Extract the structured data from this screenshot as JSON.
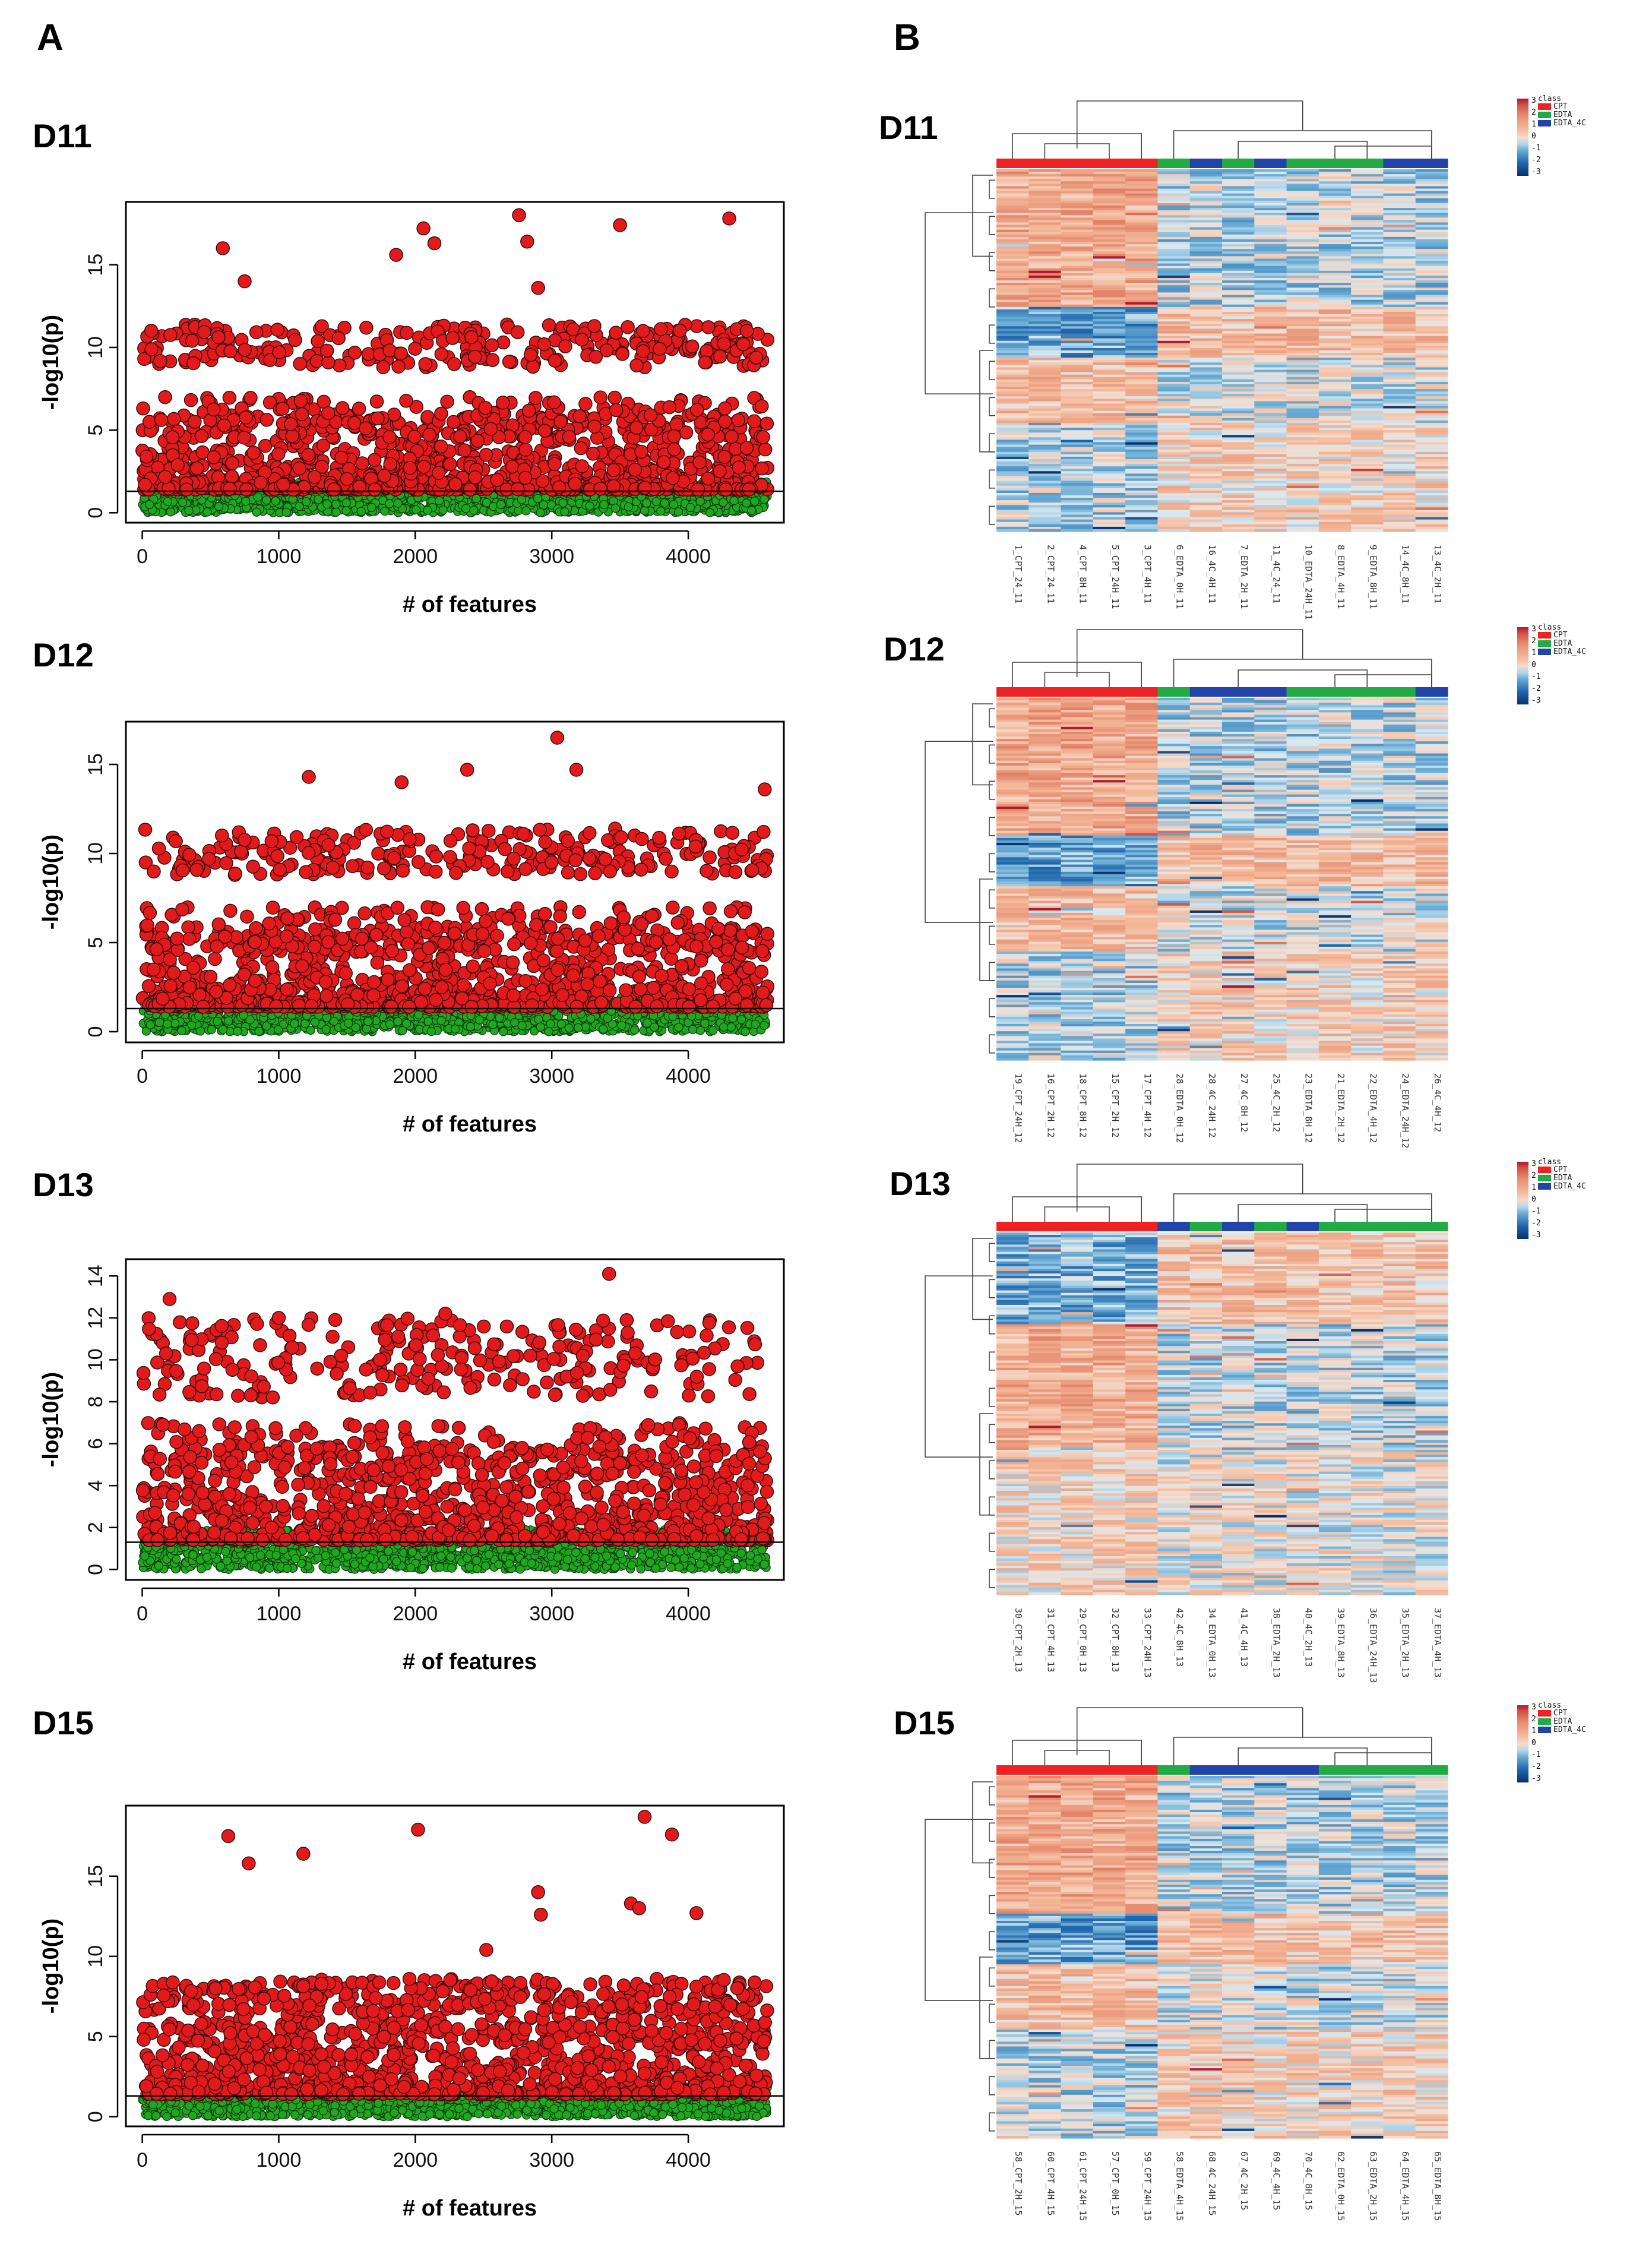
{
  "figure": {
    "panels": [
      {
        "letter": "A"
      },
      {
        "letter": "B"
      }
    ]
  },
  "colors": {
    "significant": "#e31a1c",
    "nonsignificant": "#1fa81f",
    "cpt": "#ee2222",
    "edta": "#22aa44",
    "edta_4c": "#2244aa",
    "heat_high": "#b2182b",
    "heat_mid": "#f7e4d9",
    "heat_low": "#2166ac"
  },
  "chart_data": [
    {
      "type": "scatter",
      "panel": "A",
      "label": "D11",
      "xlabel": "# of features",
      "ylabel": "-log10(p)",
      "xlim": [
        -120,
        4700
      ],
      "ylim": [
        -0.6,
        18.8
      ],
      "xticks": [
        0,
        1000,
        2000,
        3000,
        4000
      ],
      "yticks": [
        0,
        5,
        10,
        15
      ],
      "threshold": 1.3,
      "high_points": [
        [
          590,
          16.0
        ],
        [
          750,
          14.0
        ],
        [
          1860,
          15.6
        ],
        [
          2060,
          17.2
        ],
        [
          2140,
          16.3
        ],
        [
          2760,
          18.0
        ],
        [
          2820,
          16.4
        ],
        [
          2900,
          13.6
        ],
        [
          3500,
          17.4
        ],
        [
          4300,
          17.8
        ]
      ]
    },
    {
      "type": "scatter",
      "panel": "A",
      "label": "D12",
      "xlabel": "# of features",
      "ylabel": "-log10(p)",
      "xlim": [
        -120,
        4700
      ],
      "ylim": [
        -0.6,
        17.4
      ],
      "xticks": [
        0,
        1000,
        2000,
        3000,
        4000
      ],
      "yticks": [
        0,
        5,
        10,
        15
      ],
      "threshold": 1.3,
      "high_points": [
        [
          1220,
          14.3
        ],
        [
          1900,
          14.0
        ],
        [
          2380,
          14.7
        ],
        [
          3040,
          16.5
        ],
        [
          3180,
          14.7
        ],
        [
          4560,
          13.6
        ]
      ]
    },
    {
      "type": "scatter",
      "panel": "A",
      "label": "D13",
      "xlabel": "# of features",
      "ylabel": "-log10(p)",
      "xlim": [
        -120,
        4700
      ],
      "ylim": [
        -0.5,
        14.8
      ],
      "xticks": [
        0,
        1000,
        2000,
        3000,
        4000
      ],
      "yticks": [
        0,
        2,
        4,
        6,
        8,
        10,
        12,
        14
      ],
      "threshold": 1.3,
      "high_points": [
        [
          200,
          12.9
        ],
        [
          1000,
          12.0
        ],
        [
          2220,
          12.2
        ],
        [
          3420,
          14.1
        ]
      ]
    },
    {
      "type": "scatter",
      "panel": "A",
      "label": "D15",
      "xlabel": "# of features",
      "ylabel": "-log10(p)",
      "xlim": [
        -120,
        4700
      ],
      "ylim": [
        -0.6,
        19.4
      ],
      "xticks": [
        0,
        1000,
        2000,
        3000,
        4000
      ],
      "yticks": [
        0,
        5,
        10,
        15
      ],
      "threshold": 1.3,
      "high_points": [
        [
          630,
          17.5
        ],
        [
          780,
          15.8
        ],
        [
          1180,
          16.4
        ],
        [
          2020,
          17.9
        ],
        [
          2520,
          10.4
        ],
        [
          2900,
          14.0
        ],
        [
          2920,
          12.6
        ],
        [
          3580,
          13.3
        ],
        [
          3640,
          13.0
        ],
        [
          3680,
          18.7
        ],
        [
          3880,
          17.6
        ],
        [
          4060,
          12.7
        ]
      ]
    },
    {
      "type": "heatmap",
      "panel": "B",
      "label": "D11",
      "legend": {
        "title": "class",
        "entries": [
          "CPT",
          "EDTA",
          "EDTA_4C"
        ]
      },
      "color_scale": [
        3,
        2,
        1,
        0,
        -1,
        -2,
        -3
      ],
      "samples": [
        {
          "name": "1_CPT_24_11",
          "class": "CPT"
        },
        {
          "name": "2_CPT_24_11",
          "class": "CPT"
        },
        {
          "name": "4_CPT_8H_11",
          "class": "CPT"
        },
        {
          "name": "5_CPT_24H_11",
          "class": "CPT"
        },
        {
          "name": "3_CPT_4H_11",
          "class": "CPT"
        },
        {
          "name": "6_EDTA_0H_11",
          "class": "EDTA"
        },
        {
          "name": "16_4C_4H_11",
          "class": "EDTA_4C"
        },
        {
          "name": "7_EDTA_2H_11",
          "class": "EDTA"
        },
        {
          "name": "11_4C_24_11",
          "class": "EDTA_4C"
        },
        {
          "name": "10_EDTA_24H_11",
          "class": "EDTA"
        },
        {
          "name": "8_EDTA_4H_11",
          "class": "EDTA"
        },
        {
          "name": "9_EDTA_8H_11",
          "class": "EDTA"
        },
        {
          "name": "14_4C_8H_11",
          "class": "EDTA_4C"
        },
        {
          "name": "13_4C_2H_11",
          "class": "EDTA_4C"
        }
      ]
    },
    {
      "type": "heatmap",
      "panel": "B",
      "label": "D12",
      "legend": {
        "title": "class",
        "entries": [
          "CPT",
          "EDTA",
          "EDTA_4C"
        ]
      },
      "color_scale": [
        3,
        2,
        1,
        0,
        -1,
        -2,
        -3
      ],
      "samples": [
        {
          "name": "19_CPT_24H_12",
          "class": "CPT"
        },
        {
          "name": "16_CPT_2H_12",
          "class": "CPT"
        },
        {
          "name": "18_CPT_8H_12",
          "class": "CPT"
        },
        {
          "name": "15_CPT_2H_12",
          "class": "CPT"
        },
        {
          "name": "17_CPT_4H_12",
          "class": "CPT"
        },
        {
          "name": "28_EDTA_0H_12",
          "class": "EDTA"
        },
        {
          "name": "28_4C_24H_12",
          "class": "EDTA_4C"
        },
        {
          "name": "27_4C_8H_12",
          "class": "EDTA_4C"
        },
        {
          "name": "25_4C_2H_12",
          "class": "EDTA_4C"
        },
        {
          "name": "23_EDTA_8H_12",
          "class": "EDTA"
        },
        {
          "name": "21_EDTA_2H_12",
          "class": "EDTA"
        },
        {
          "name": "22_EDTA_4H_12",
          "class": "EDTA"
        },
        {
          "name": "24_EDTA_24H_12",
          "class": "EDTA"
        },
        {
          "name": "26_4C_4H_12",
          "class": "EDTA_4C"
        }
      ]
    },
    {
      "type": "heatmap",
      "panel": "B",
      "label": "D13",
      "legend": {
        "title": "class",
        "entries": [
          "CPT",
          "EDTA",
          "EDTA_4C"
        ]
      },
      "color_scale": [
        3,
        2,
        1,
        0,
        -1,
        -2,
        -3
      ],
      "samples": [
        {
          "name": "30_CPT_2H_13",
          "class": "CPT"
        },
        {
          "name": "31_CPT_4H_13",
          "class": "CPT"
        },
        {
          "name": "29_CPT_0H_13",
          "class": "CPT"
        },
        {
          "name": "32_CPT_8H_13",
          "class": "CPT"
        },
        {
          "name": "33_CPT_24H_13",
          "class": "CPT"
        },
        {
          "name": "42_4C_8H_13",
          "class": "EDTA_4C"
        },
        {
          "name": "34_EDTA_0H_13",
          "class": "EDTA"
        },
        {
          "name": "41_4C_4H_13",
          "class": "EDTA_4C"
        },
        {
          "name": "38_EDTA_2H_13",
          "class": "EDTA"
        },
        {
          "name": "40_4C_2H_13",
          "class": "EDTA_4C"
        },
        {
          "name": "39_EDTA_8H_13",
          "class": "EDTA"
        },
        {
          "name": "36_EDTA_24H_13",
          "class": "EDTA"
        },
        {
          "name": "35_EDTA_2H_13",
          "class": "EDTA"
        },
        {
          "name": "37_EDTA_4H_13",
          "class": "EDTA"
        }
      ]
    },
    {
      "type": "heatmap",
      "panel": "B",
      "label": "D15",
      "legend": {
        "title": "class",
        "entries": [
          "CPT",
          "EDTA",
          "EDTA_4C"
        ]
      },
      "color_scale": [
        3,
        2,
        1,
        0,
        -1,
        -2,
        -3
      ],
      "samples": [
        {
          "name": "58_CPT_2H_15",
          "class": "CPT"
        },
        {
          "name": "60_CPT_4H_15",
          "class": "CPT"
        },
        {
          "name": "61_CPT_24H_15",
          "class": "CPT"
        },
        {
          "name": "57_CPT_0H_15",
          "class": "CPT"
        },
        {
          "name": "59_CPT_24H_15",
          "class": "CPT"
        },
        {
          "name": "58_EDTA_4H_15",
          "class": "EDTA"
        },
        {
          "name": "68_4C_24H_15",
          "class": "EDTA_4C"
        },
        {
          "name": "67_4C_2H_15",
          "class": "EDTA_4C"
        },
        {
          "name": "69_4C_4H_15",
          "class": "EDTA_4C"
        },
        {
          "name": "70_4C_8H_15",
          "class": "EDTA_4C"
        },
        {
          "name": "62_EDTA_0H_15",
          "class": "EDTA"
        },
        {
          "name": "63_EDTA_2H_15",
          "class": "EDTA"
        },
        {
          "name": "64_EDTA_4H_15",
          "class": "EDTA"
        },
        {
          "name": "65_EDTA_8H_15",
          "class": "EDTA"
        }
      ]
    }
  ]
}
